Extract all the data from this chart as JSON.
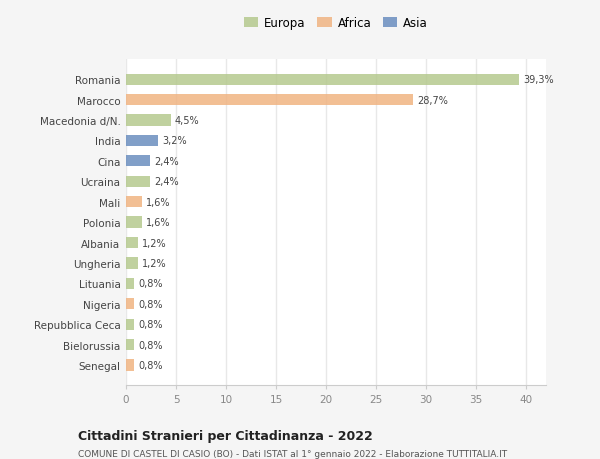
{
  "countries": [
    "Romania",
    "Marocco",
    "Macedonia d/N.",
    "India",
    "Cina",
    "Ucraina",
    "Mali",
    "Polonia",
    "Albania",
    "Ungheria",
    "Lituania",
    "Nigeria",
    "Repubblica Ceca",
    "Bielorussia",
    "Senegal"
  ],
  "values": [
    39.3,
    28.7,
    4.5,
    3.2,
    2.4,
    2.4,
    1.6,
    1.6,
    1.2,
    1.2,
    0.8,
    0.8,
    0.8,
    0.8,
    0.8
  ],
  "labels": [
    "39,3%",
    "28,7%",
    "4,5%",
    "3,2%",
    "2,4%",
    "2,4%",
    "1,6%",
    "1,6%",
    "1,2%",
    "1,2%",
    "0,8%",
    "0,8%",
    "0,8%",
    "0,8%",
    "0,8%"
  ],
  "colors": [
    "#b5c98e",
    "#f0b482",
    "#b5c98e",
    "#6b8ebf",
    "#6b8ebf",
    "#b5c98e",
    "#f0b482",
    "#b5c98e",
    "#b5c98e",
    "#b5c98e",
    "#b5c98e",
    "#f0b482",
    "#b5c98e",
    "#b5c98e",
    "#f0b482"
  ],
  "legend": [
    {
      "label": "Europa",
      "color": "#b5c98e"
    },
    {
      "label": "Africa",
      "color": "#f0b482"
    },
    {
      "label": "Asia",
      "color": "#6b8ebf"
    }
  ],
  "xlim": [
    0,
    42
  ],
  "xticks": [
    0,
    5,
    10,
    15,
    20,
    25,
    30,
    35,
    40
  ],
  "title": "Cittadini Stranieri per Cittadinanza - 2022",
  "subtitle": "COMUNE DI CASTEL DI CASIO (BO) - Dati ISTAT al 1° gennaio 2022 - Elaborazione TUTTITALIA.IT",
  "bg_color": "#f5f5f5",
  "plot_bg_color": "#ffffff",
  "grid_color": "#e8e8e8",
  "bar_height": 0.55
}
